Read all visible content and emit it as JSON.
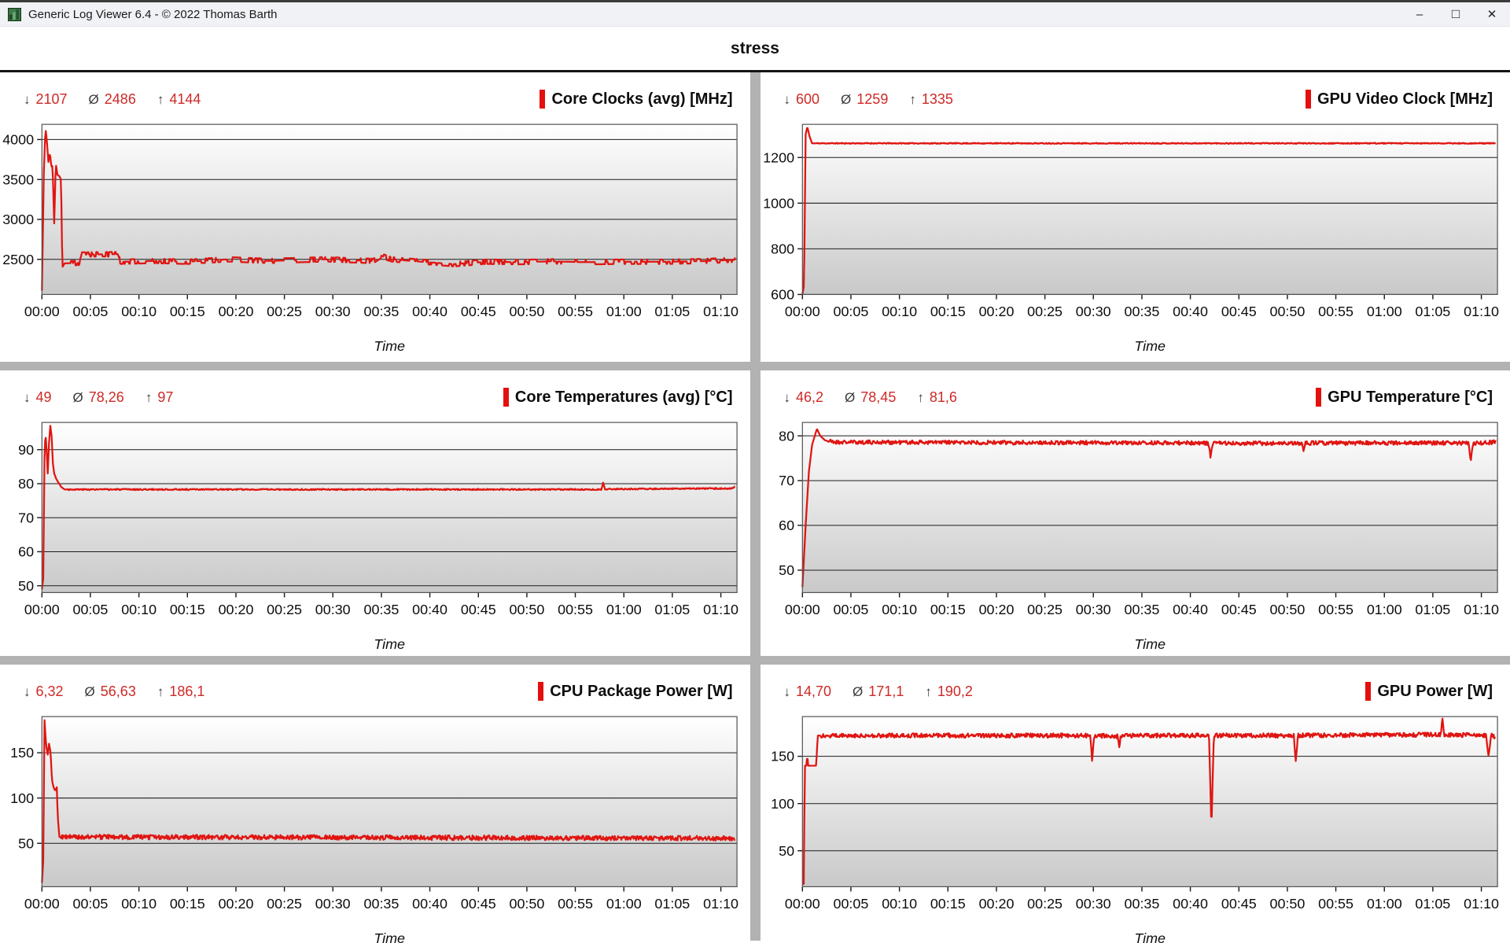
{
  "window": {
    "title": "Generic Log Viewer 6.4 - © 2022 Thomas Barth",
    "controls": {
      "minimize": "–",
      "maximize": "□",
      "close": "✕"
    }
  },
  "header": {
    "title": "stress"
  },
  "symbols": {
    "min": "↓",
    "avg": "Ø",
    "max": "↑"
  },
  "colors": {
    "line_red": "#e01511",
    "marker_red": "#e3100e",
    "stat_red": "#cd2a27",
    "grid_line": "#1c1c1c",
    "plot_border": "#555555",
    "gradient_top": "#ffffff",
    "gradient_bottom": "#c9c9c9",
    "divider_gray": "#b2b2b2"
  },
  "time_axis": {
    "label": "Time",
    "t_max": 4300,
    "tick_seconds": [
      0,
      300,
      600,
      900,
      1200,
      1500,
      1800,
      2100,
      2400,
      2700,
      3000,
      3300,
      3600,
      3900,
      4200
    ],
    "tick_labels": [
      "00:00",
      "00:05",
      "00:10",
      "00:15",
      "00:20",
      "00:25",
      "00:30",
      "00:35",
      "00:40",
      "00:45",
      "00:50",
      "00:55",
      "01:00",
      "01:05",
      "01:10"
    ]
  },
  "charts": [
    {
      "id": "c0",
      "title": "Core Clocks (avg) [MHz]",
      "min": "2107",
      "avg": "2486",
      "max": "4144",
      "y_ticks": [
        2500,
        3000,
        3500,
        4000
      ],
      "ylim": [
        2060,
        4190
      ],
      "series": {
        "keypoints": [
          [
            0,
            2107
          ],
          [
            12,
            3600
          ],
          [
            22,
            4144
          ],
          [
            30,
            4000
          ],
          [
            40,
            3720
          ],
          [
            50,
            3830
          ],
          [
            58,
            3660
          ],
          [
            66,
            3670
          ],
          [
            76,
            2950
          ],
          [
            86,
            3700
          ],
          [
            96,
            3560
          ],
          [
            108,
            3540
          ],
          [
            118,
            3500
          ],
          [
            126,
            2400
          ],
          [
            140,
            2450
          ],
          [
            230,
            2455
          ],
          [
            245,
            2560
          ],
          [
            470,
            2565
          ],
          [
            485,
            2470
          ],
          [
            700,
            2480
          ],
          [
            900,
            2470
          ],
          [
            1150,
            2500
          ],
          [
            1400,
            2480
          ],
          [
            1750,
            2500
          ],
          [
            2050,
            2480
          ],
          [
            2100,
            2545
          ],
          [
            2160,
            2500
          ],
          [
            2350,
            2470
          ],
          [
            2550,
            2440
          ],
          [
            2750,
            2470
          ],
          [
            2950,
            2465
          ],
          [
            3150,
            2475
          ],
          [
            3350,
            2465
          ],
          [
            3600,
            2470
          ],
          [
            3850,
            2470
          ],
          [
            4100,
            2478
          ],
          [
            4290,
            2495
          ]
        ],
        "noise": 40,
        "noise_mode": "step",
        "quantum": 28,
        "noise_from": 150,
        "seed": 5
      }
    },
    {
      "id": "c1",
      "title": "GPU Video Clock [MHz]",
      "min": "600",
      "avg": "1259",
      "max": "1335",
      "y_ticks": [
        600,
        800,
        1000,
        1200
      ],
      "ylim": [
        600,
        1345
      ],
      "series": {
        "keypoints": [
          [
            0,
            600
          ],
          [
            10,
            640
          ],
          [
            20,
            1300
          ],
          [
            30,
            1335
          ],
          [
            45,
            1290
          ],
          [
            60,
            1262
          ],
          [
            4290,
            1262
          ]
        ],
        "noise": 2,
        "noise_from": 80,
        "seed": 11
      }
    },
    {
      "id": "c2",
      "title": "Core Temperatures (avg) [°C]",
      "min": "49",
      "avg": "78,26",
      "max": "97",
      "y_ticks": [
        50,
        60,
        70,
        80,
        90
      ],
      "ylim": [
        48,
        98
      ],
      "series": {
        "keypoints": [
          [
            0,
            49
          ],
          [
            8,
            52
          ],
          [
            16,
            88
          ],
          [
            22,
            95
          ],
          [
            30,
            89
          ],
          [
            36,
            83
          ],
          [
            44,
            92
          ],
          [
            52,
            97
          ],
          [
            60,
            94
          ],
          [
            68,
            86
          ],
          [
            76,
            83
          ],
          [
            88,
            81.5
          ],
          [
            100,
            80.5
          ],
          [
            120,
            79
          ],
          [
            140,
            78.3
          ],
          [
            3460,
            78.3
          ],
          [
            3472,
            80.3
          ],
          [
            3484,
            78.4
          ],
          [
            4270,
            78.6
          ],
          [
            4290,
            79.3
          ]
        ],
        "noise": 0.18,
        "noise_from": 160,
        "seed": 3
      }
    },
    {
      "id": "c3",
      "title": "GPU Temperature [°C]",
      "min": "46,2",
      "avg": "78,45",
      "max": "81,6",
      "y_ticks": [
        50,
        60,
        70,
        80
      ],
      "ylim": [
        45,
        83
      ],
      "series": {
        "keypoints": [
          [
            0,
            46.2
          ],
          [
            20,
            60
          ],
          [
            40,
            72
          ],
          [
            60,
            78
          ],
          [
            90,
            81.6
          ],
          [
            110,
            80
          ],
          [
            140,
            79
          ],
          [
            200,
            78.6
          ],
          [
            2510,
            78.4
          ],
          [
            2525,
            75.3
          ],
          [
            2540,
            78.4
          ],
          [
            3090,
            78.3
          ],
          [
            3100,
            76.8
          ],
          [
            3110,
            78.4
          ],
          [
            4120,
            78.4
          ],
          [
            4135,
            74.5
          ],
          [
            4150,
            78.3
          ],
          [
            4290,
            78.6
          ]
        ],
        "noise": 0.45,
        "noise_from": 150,
        "seed": 21
      }
    },
    {
      "id": "c4",
      "title": "CPU Package Power [W]",
      "min": "6,32",
      "avg": "56,63",
      "max": "186,1",
      "y_ticks": [
        50,
        100,
        150
      ],
      "ylim": [
        2,
        190
      ],
      "series": {
        "keypoints": [
          [
            0,
            6.32
          ],
          [
            8,
            30
          ],
          [
            16,
            186.1
          ],
          [
            26,
            158
          ],
          [
            36,
            148
          ],
          [
            44,
            160
          ],
          [
            54,
            150
          ],
          [
            62,
            120
          ],
          [
            72,
            112
          ],
          [
            82,
            108
          ],
          [
            92,
            112
          ],
          [
            98,
            80
          ],
          [
            108,
            57
          ],
          [
            4290,
            55.5
          ]
        ],
        "noise": 2.6,
        "noise_from": 120,
        "seed": 9
      }
    },
    {
      "id": "c5",
      "title": "GPU Power [W]",
      "min": "14,70",
      "avg": "171,1",
      "max": "190,2",
      "y_ticks": [
        50,
        100,
        150
      ],
      "ylim": [
        12,
        192
      ],
      "series": {
        "keypoints": [
          [
            0,
            14.7
          ],
          [
            8,
            15
          ],
          [
            15,
            140
          ],
          [
            25,
            140
          ],
          [
            30,
            152
          ],
          [
            35,
            140
          ],
          [
            85,
            140
          ],
          [
            95,
            172
          ],
          [
            1780,
            172
          ],
          [
            1792,
            146
          ],
          [
            1805,
            172
          ],
          [
            1950,
            171
          ],
          [
            1960,
            160
          ],
          [
            1970,
            172
          ],
          [
            2515,
            172
          ],
          [
            2530,
            75
          ],
          [
            2545,
            172
          ],
          [
            3040,
            172
          ],
          [
            3052,
            145
          ],
          [
            3065,
            172
          ],
          [
            3950,
            173
          ],
          [
            3960,
            190.2
          ],
          [
            3970,
            173
          ],
          [
            4230,
            172
          ],
          [
            4245,
            150
          ],
          [
            4260,
            172
          ],
          [
            4290,
            170
          ]
        ],
        "noise": 2.3,
        "noise_from": 110,
        "seed": 27
      }
    }
  ]
}
